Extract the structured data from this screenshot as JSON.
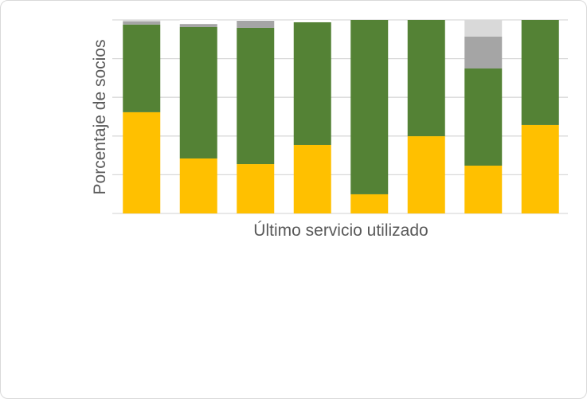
{
  "chart_data": {
    "type": "bar",
    "stacked": true,
    "percent_stacked": true,
    "title": "",
    "xlabel": "Último servicio utilizado",
    "ylabel": "Porcentaje de socios",
    "ylim": [
      0,
      100
    ],
    "grid": true,
    "legend": "none",
    "categories": [
      "",
      "",
      "",
      "",
      "",
      "",
      "",
      ""
    ],
    "series": [
      {
        "color": "#ffc000",
        "values": [
          52.3,
          28.4,
          25.5,
          35.4,
          9.9,
          39.9,
          24.7,
          45.7
        ]
      },
      {
        "color": "#548235",
        "values": [
          45.3,
          67.9,
          70.4,
          63.4,
          90.1,
          60.1,
          50.2,
          54.3
        ]
      },
      {
        "color": "#a5a5a5",
        "values": [
          1.6,
          1.6,
          3.7,
          0,
          0,
          0,
          16.5,
          0
        ]
      },
      {
        "color": "#d9d9d9",
        "values": [
          0.8,
          0,
          0,
          0,
          0,
          0,
          8.6,
          0
        ]
      },
      {
        "color": "#ffffff",
        "values": [
          0,
          2.1,
          0.4,
          1.2,
          0,
          0,
          0,
          0
        ]
      }
    ]
  }
}
